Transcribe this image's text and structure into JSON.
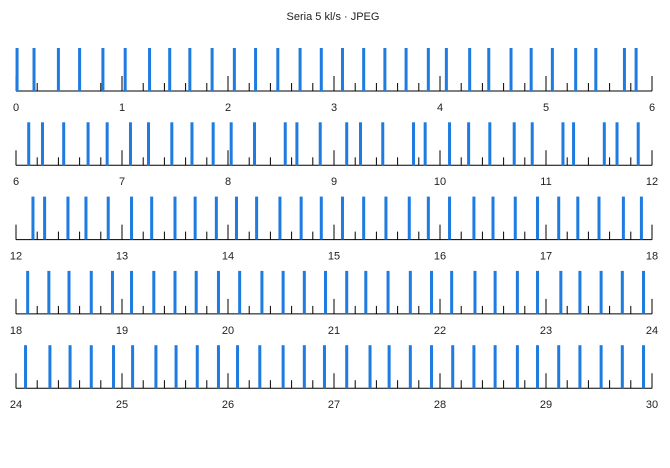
{
  "chart_data": {
    "type": "event",
    "title": "Seria 5 kl/s · JPEG",
    "x": [
      0.01,
      0.17,
      0.4,
      0.6,
      0.82,
      1.03,
      1.26,
      1.45,
      1.64,
      1.85,
      2.06,
      2.26,
      2.47,
      2.68,
      2.88,
      3.08,
      3.28,
      3.48,
      3.68,
      3.89,
      4.06,
      4.28,
      4.46,
      4.67,
      4.86,
      5.06,
      5.28,
      5.47,
      5.74,
      5.85,
      6.12,
      6.25,
      6.45,
      6.68,
      6.86,
      7.08,
      7.25,
      7.47,
      7.66,
      7.86,
      8.03,
      8.25,
      8.54,
      8.65,
      8.87,
      9.12,
      9.25,
      9.46,
      9.75,
      9.86,
      10.09,
      10.27,
      10.47,
      10.7,
      10.87,
      11.16,
      11.26,
      11.55,
      11.67,
      11.87,
      12.16,
      12.27,
      12.49,
      12.66,
      12.87,
      13.09,
      13.28,
      13.5,
      13.69,
      13.89,
      14.08,
      14.27,
      14.49,
      14.69,
      14.88,
      15.08,
      15.28,
      15.49,
      15.71,
      15.89,
      16.09,
      16.32,
      16.5,
      16.71,
      16.92,
      17.12,
      17.3,
      17.5,
      17.73,
      17.9,
      18.11,
      18.31,
      18.5,
      18.71,
      18.91,
      19.09,
      19.3,
      19.5,
      19.7,
      19.91,
      20.11,
      20.32,
      20.52,
      20.72,
      20.92,
      21.12,
      21.3,
      21.51,
      21.72,
      21.92,
      22.11,
      22.33,
      22.52,
      22.73,
      22.92,
      23.14,
      23.32,
      23.52,
      23.72,
      23.92,
      24.09,
      24.32,
      24.51,
      24.71,
      24.92,
      25.1,
      25.32,
      25.51,
      25.71,
      25.91,
      26.09,
      26.3,
      26.52,
      26.72,
      26.91,
      27.12,
      27.34,
      27.52,
      27.72,
      27.92,
      28.12,
      28.32,
      28.52,
      28.73,
      28.92,
      29.12,
      29.32,
      29.52,
      29.72,
      29.92
    ],
    "color": "#1e7be0",
    "xlim": [
      0,
      30
    ],
    "xticks": [
      0,
      1,
      2,
      3,
      4,
      5,
      6,
      7,
      8,
      9,
      10,
      11,
      12,
      13,
      14,
      15,
      16,
      17,
      18,
      19,
      20,
      21,
      22,
      23,
      24,
      25,
      26,
      27,
      28,
      29,
      30
    ],
    "minor_tick_interval": 0.2
  }
}
